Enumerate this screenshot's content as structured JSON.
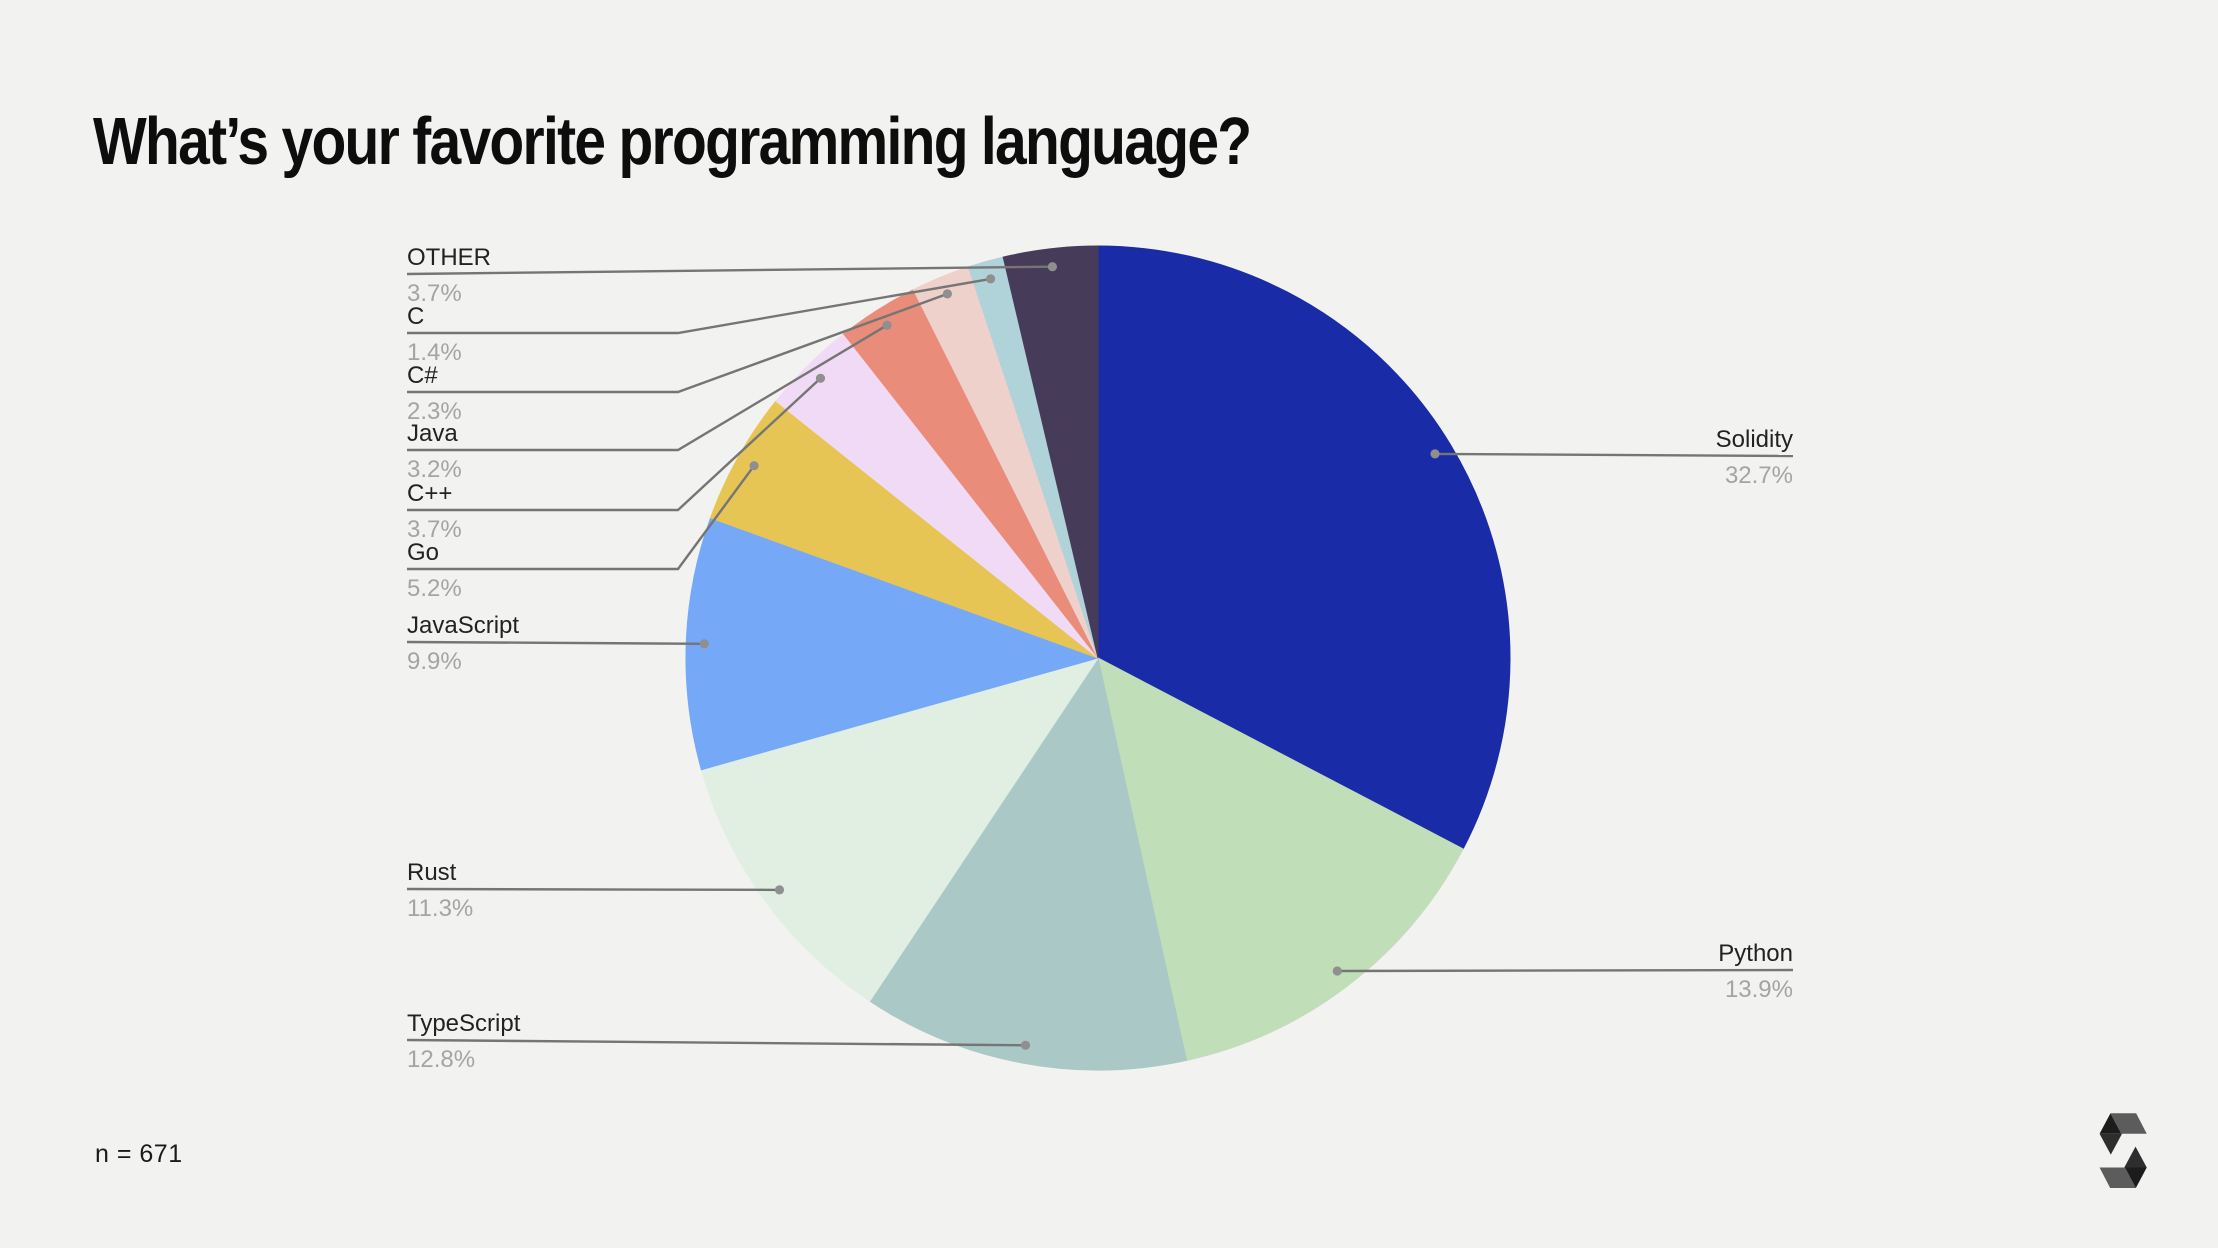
{
  "page": {
    "background": "#f2f2f0",
    "title": "What’s your favorite programming language?",
    "sample_size": "n = 671"
  },
  "logo": {
    "name": "solidity-logo",
    "colors": {
      "dark": "#1c1c1c",
      "mid": "#2e2e2e",
      "light": "#5c5c5c"
    }
  },
  "chart_data": {
    "type": "pie",
    "title": "What’s your favorite programming language?",
    "sample_size": 671,
    "direction": "clockwise",
    "start_angle_deg": 0,
    "legend_position": "callout-labels",
    "text_colors": {
      "label": "#222222",
      "pct": "#a5a4a2",
      "leader": "#757575",
      "dot": "#8f8f8f"
    },
    "slices": [
      {
        "label": "Solidity",
        "value": 32.7,
        "pct_label": "32.7%",
        "color": "#1a2ba8"
      },
      {
        "label": "Python",
        "value": 13.9,
        "pct_label": "13.9%",
        "color": "#c0deb8"
      },
      {
        "label": "TypeScript",
        "value": 12.8,
        "pct_label": "12.8%",
        "color": "#aac8c6"
      },
      {
        "label": "Rust",
        "value": 11.3,
        "pct_label": "11.3%",
        "color": "#e0efe1"
      },
      {
        "label": "JavaScript",
        "value": 9.9,
        "pct_label": "9.9%",
        "color": "#75a8f7"
      },
      {
        "label": "Go",
        "value": 5.2,
        "pct_label": "5.2%",
        "color": "#e7c554"
      },
      {
        "label": "C++",
        "value": 3.7,
        "pct_label": "3.7%",
        "color": "#f1daf5"
      },
      {
        "label": "Java",
        "value": 3.2,
        "pct_label": "3.2%",
        "color": "#e98d7a"
      },
      {
        "label": "C#",
        "value": 2.3,
        "pct_label": "2.3%",
        "color": "#eed1ca"
      },
      {
        "label": "C",
        "value": 1.4,
        "pct_label": "1.4%",
        "color": "#afd3d8"
      },
      {
        "label": "OTHER",
        "value": 3.7,
        "pct_label": "3.7%",
        "color": "#463c59"
      }
    ]
  }
}
